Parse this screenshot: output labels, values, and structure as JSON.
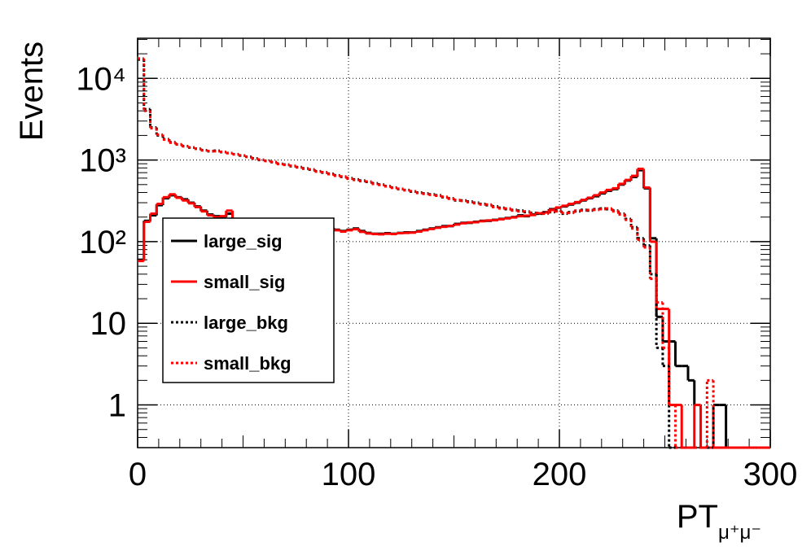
{
  "chart_data": {
    "type": "histogram",
    "xlabel": "PT",
    "xlabel_subscript": "μ⁺μ⁻",
    "ylabel": "Events",
    "bins": [
      0,
      3,
      6,
      9,
      12,
      15,
      18,
      21,
      24,
      27,
      30,
      33,
      36,
      39,
      42,
      45,
      48,
      51,
      54,
      57,
      60,
      63,
      66,
      69,
      72,
      75,
      78,
      81,
      84,
      87,
      90,
      93,
      96,
      99,
      102,
      105,
      108,
      111,
      114,
      117,
      120,
      123,
      126,
      129,
      132,
      135,
      138,
      141,
      144,
      147,
      150,
      153,
      156,
      159,
      162,
      165,
      168,
      171,
      174,
      177,
      180,
      183,
      186,
      189,
      192,
      195,
      198,
      201,
      204,
      207,
      210,
      213,
      216,
      219,
      222,
      225,
      228,
      231,
      234,
      237,
      240,
      243,
      246,
      249,
      252,
      255,
      258,
      261,
      264,
      267,
      270,
      273,
      276,
      279,
      282,
      285,
      288,
      291,
      294,
      297,
      300
    ],
    "series": [
      {
        "name": "large_sig",
        "color": "#000000",
        "dash": "solid",
        "values": [
          60,
          180,
          210,
          280,
          340,
          370,
          350,
          330,
          300,
          270,
          240,
          215,
          205,
          200,
          220,
          180,
          175,
          170,
          165,
          165,
          160,
          158,
          155,
          155,
          152,
          150,
          150,
          148,
          150,
          150,
          148,
          140,
          135,
          140,
          145,
          135,
          128,
          125,
          125,
          127,
          125,
          128,
          130,
          130,
          135,
          140,
          145,
          150,
          155,
          155,
          165,
          170,
          170,
          175,
          180,
          180,
          185,
          190,
          195,
          200,
          210,
          205,
          215,
          220,
          230,
          250,
          260,
          270,
          285,
          300,
          320,
          340,
          360,
          390,
          420,
          440,
          500,
          560,
          620,
          750,
          450,
          110,
          12,
          6,
          6,
          3,
          3,
          2,
          1,
          0,
          0,
          1,
          1,
          0,
          0,
          0,
          0,
          0,
          0,
          0
        ]
      },
      {
        "name": "small_sig",
        "color": "#ff0000",
        "dash": "solid",
        "values": [
          58,
          175,
          220,
          290,
          350,
          380,
          345,
          320,
          295,
          265,
          235,
          210,
          200,
          205,
          240,
          175,
          172,
          168,
          163,
          160,
          158,
          155,
          152,
          153,
          150,
          148,
          147,
          146,
          148,
          149,
          145,
          138,
          133,
          138,
          142,
          132,
          126,
          124,
          123,
          125,
          124,
          127,
          128,
          129,
          133,
          138,
          143,
          148,
          152,
          156,
          162,
          168,
          172,
          173,
          178,
          182,
          183,
          188,
          193,
          198,
          205,
          208,
          212,
          222,
          228,
          245,
          262,
          275,
          290,
          305,
          325,
          345,
          370,
          400,
          430,
          450,
          510,
          570,
          640,
          780,
          460,
          100,
          15,
          15,
          1,
          1,
          0,
          0,
          1,
          0,
          0,
          0,
          0,
          0,
          0,
          0,
          0,
          0,
          0,
          0
        ]
      },
      {
        "name": "large_bkg",
        "color": "#000000",
        "dash": "dotted",
        "values": [
          17000,
          4200,
          2500,
          2000,
          1800,
          1650,
          1550,
          1480,
          1420,
          1380,
          1320,
          1280,
          1300,
          1250,
          1220,
          1180,
          1130,
          1100,
          1050,
          1000,
          980,
          940,
          900,
          880,
          840,
          820,
          790,
          760,
          730,
          700,
          680,
          650,
          620,
          600,
          580,
          560,
          540,
          520,
          500,
          480,
          460,
          440,
          430,
          410,
          400,
          390,
          380,
          370,
          350,
          340,
          320,
          320,
          310,
          300,
          290,
          280,
          270,
          260,
          250,
          245,
          240,
          230,
          225,
          220,
          225,
          230,
          240,
          220,
          230,
          235,
          245,
          240,
          250,
          255,
          250,
          240,
          220,
          190,
          150,
          110,
          90,
          40,
          5,
          3,
          0,
          0,
          0,
          0,
          0,
          0,
          0,
          0,
          0,
          0,
          0,
          0,
          0,
          0,
          0,
          0
        ]
      },
      {
        "name": "small_bkg",
        "color": "#ff0000",
        "dash": "dotted",
        "values": [
          17500,
          4000,
          2450,
          2050,
          1780,
          1630,
          1560,
          1470,
          1430,
          1370,
          1310,
          1290,
          1280,
          1260,
          1210,
          1170,
          1140,
          1090,
          1040,
          1010,
          970,
          950,
          890,
          870,
          850,
          810,
          780,
          770,
          720,
          710,
          670,
          640,
          630,
          590,
          570,
          550,
          545,
          510,
          495,
          475,
          455,
          445,
          425,
          415,
          395,
          385,
          375,
          365,
          355,
          335,
          325,
          315,
          305,
          295,
          285,
          285,
          265,
          255,
          255,
          240,
          235,
          235,
          220,
          225,
          220,
          235,
          235,
          225,
          225,
          240,
          240,
          245,
          245,
          250,
          255,
          235,
          215,
          185,
          145,
          105,
          85,
          35,
          18,
          5,
          1,
          0,
          0,
          0,
          0,
          0,
          2,
          0,
          0,
          0,
          0,
          0,
          0,
          0,
          0,
          0
        ]
      }
    ],
    "xlim": [
      0,
      300
    ],
    "xticks": [
      0,
      100,
      200,
      300
    ],
    "ylim": [
      0.3,
      31000
    ],
    "yscale": "log",
    "yticks": [
      1,
      10,
      {
        "value": 100,
        "label": "10²"
      },
      {
        "value": 1000,
        "label": "10³"
      },
      {
        "value": 10000,
        "label": "10⁴"
      }
    ],
    "grid": true,
    "legend": "left"
  }
}
